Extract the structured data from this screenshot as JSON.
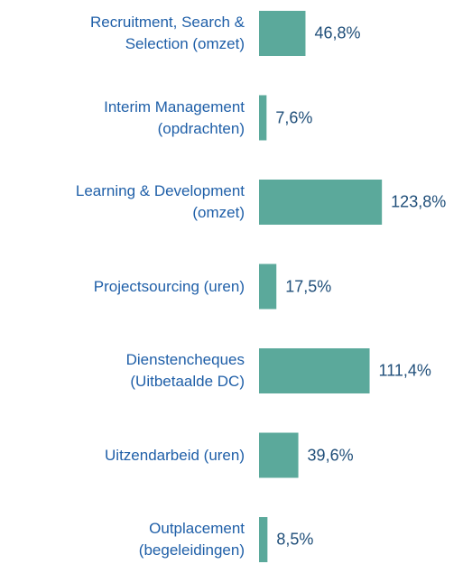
{
  "chart_data": {
    "type": "barh",
    "categories": [
      "Recruitment, Search &\nSelection (omzet)",
      "Interim Management\n(opdrachten)",
      "Learning & Development\n(omzet)",
      "Projectsourcing (uren)",
      "Dienstencheques\n(Uitbetaalde DC)",
      "Uitzendarbeid (uren)",
      "Outplacement\n(begeleidingen)"
    ],
    "values": [
      46.8,
      7.6,
      123.8,
      17.5,
      111.4,
      39.6,
      8.5
    ],
    "value_labels": [
      "46,8%",
      "7,6%",
      "123,8%",
      "17,5%",
      "111,4%",
      "39,6%",
      "8,5%"
    ],
    "color": "#5ba99b",
    "xlim": [
      0,
      130
    ]
  }
}
